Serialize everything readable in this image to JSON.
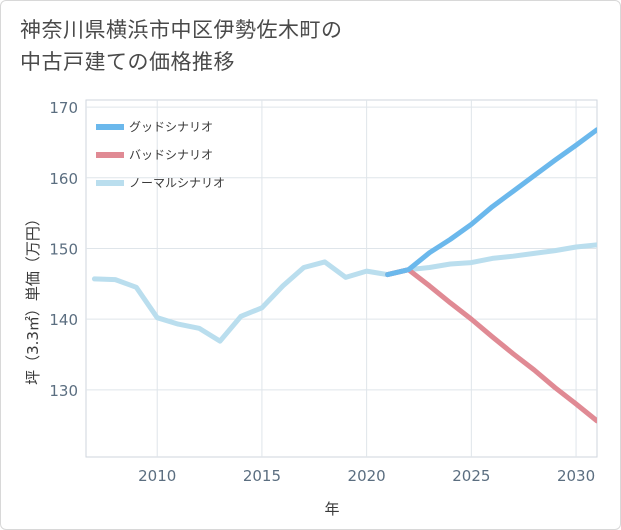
{
  "title": {
    "line1": "神奈川県横浜市中区伊勢佐木町の",
    "line2": "中古戸建ての価格推移"
  },
  "chart_data": {
    "type": "line",
    "xlabel": "年",
    "ylabel": "坪（3.3㎡）単価（万円）",
    "xlim": [
      2006.6,
      2031
    ],
    "ylim": [
      120.5,
      171
    ],
    "x_ticks": [
      2010,
      2015,
      2020,
      2025,
      2030
    ],
    "y_ticks": [
      130,
      140,
      150,
      160,
      170
    ],
    "legend_position": "top-left",
    "series": [
      {
        "name": "グッドシナリオ",
        "color": "#6bb8ec",
        "x": [
          2021,
          2022,
          2023,
          2024,
          2025,
          2026,
          2027,
          2028,
          2029,
          2030,
          2031
        ],
        "values": [
          146.3,
          147.0,
          149.4,
          151.3,
          153.4,
          155.9,
          158.1,
          160.3,
          162.5,
          164.6,
          166.8
        ]
      },
      {
        "name": "バッドシナリオ",
        "color": "#e08a94",
        "x": [
          2021,
          2022,
          2023,
          2024,
          2025,
          2026,
          2027,
          2028,
          2029,
          2030,
          2031
        ],
        "values": [
          146.3,
          147.0,
          144.7,
          142.3,
          140.0,
          137.5,
          135.1,
          132.8,
          130.3,
          128.0,
          125.6
        ]
      },
      {
        "name": "ノーマルシナリオ",
        "color": "#badeee",
        "x": [
          2007,
          2008,
          2009,
          2010,
          2011,
          2012,
          2013,
          2014,
          2015,
          2016,
          2017,
          2018,
          2019,
          2020,
          2021,
          2022,
          2023,
          2024,
          2025,
          2026,
          2027,
          2028,
          2029,
          2030,
          2031
        ],
        "values": [
          145.7,
          145.6,
          144.5,
          140.2,
          139.3,
          138.7,
          136.9,
          140.4,
          141.6,
          144.7,
          147.3,
          148.1,
          145.9,
          146.8,
          146.3,
          147.0,
          147.3,
          147.8,
          148.0,
          148.6,
          148.9,
          149.3,
          149.7,
          150.2,
          150.5
        ]
      }
    ]
  }
}
